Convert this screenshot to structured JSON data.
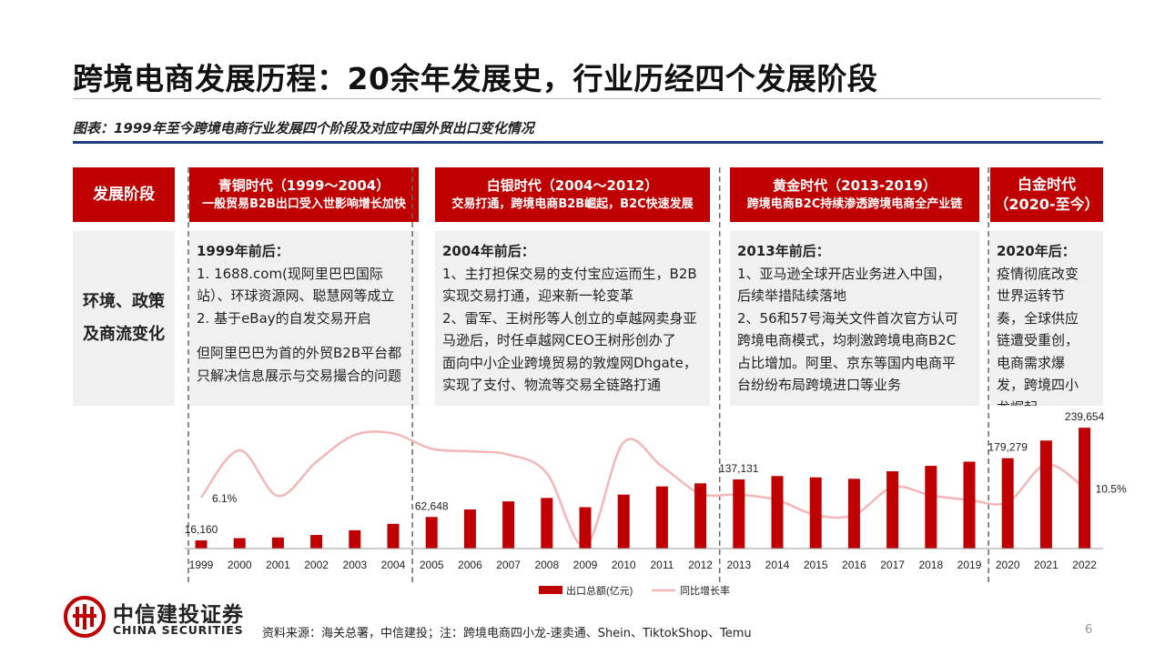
{
  "title": "跨境电商发展历程：20余年发展史，行业历经四个发展阶段",
  "subtitle": "图表：1999年至今跨境电商行业发展四个阶段及对应中国外贸出口变化情况",
  "row_labels": {
    "stage": "发展阶段",
    "env_line1": "环境、政策",
    "env_line2": "及商流变化"
  },
  "stages": [
    {
      "name": "青铜时代（1999～2004）",
      "desc": "一般贸易B2B出口受入世影响增长加快"
    },
    {
      "name": "白银时代（2004～2012）",
      "desc": "交易打通，跨境电商B2B崛起，B2C快速发展"
    },
    {
      "name": "黄金时代（2013-2019）",
      "desc": "跨境电商B2C持续渗透跨境电商全产业链"
    },
    {
      "name": "白金时代",
      "desc": "（2020-至今）"
    }
  ],
  "details": [
    {
      "head": "1999年前后：",
      "lines": [
        "1. 1688.com(现阿里巴巴国际",
        "站）、环球资源网、聪慧网等成立",
        "2. 基于eBay的自发交易开启"
      ],
      "lines2": [
        "但阿里巴巴为首的外贸B2B平台都",
        "只解决信息展示与交易撮合的问题"
      ]
    },
    {
      "head": "2004年前后：",
      "lines": [
        "1、主打担保交易的支付宝应运而生，B2B",
        "实现交易打通，迎来新一轮变革",
        "2、雷军、王树彤等人创立的卓越网卖身亚",
        "马逊后，时任卓越网CEO王树彤创办了",
        "面向中小企业跨境贸易的敦煌网Dhgate，",
        "实现了支付、物流等交易全链路打通"
      ],
      "lines2": []
    },
    {
      "head": "2013年前后：",
      "lines": [
        "1、亚马逊全球开店业务进入中国，",
        "后续举措陆续落地",
        "2、56和57号海关文件首次官方认可",
        "跨境电商模式，均刺激跨境电商B2C",
        "占比增加。阿里、京东等国内电商平",
        "台纷纷布局跨境进口等业务"
      ],
      "lines2": []
    },
    {
      "head": "2020年后：",
      "lines": [
        "疫情彻底改变",
        "世界运转节",
        "奏，全球供应",
        "链遭受重创，",
        "电商需求爆",
        "发，跨境四小",
        "龙崛起"
      ],
      "lines2": []
    }
  ],
  "chart_data": {
    "type": "bar",
    "categories": [
      "1999",
      "2000",
      "2001",
      "2002",
      "2003",
      "2004",
      "2005",
      "2006",
      "2007",
      "2008",
      "2009",
      "2010",
      "2011",
      "2012",
      "2013",
      "2014",
      "2015",
      "2016",
      "2017",
      "2018",
      "2019",
      "2020",
      "2021",
      "2022"
    ],
    "series": [
      {
        "name": "出口总额(亿元)",
        "type": "bar",
        "color": "#c00000",
        "values": [
          16160,
          20634,
          22024,
          26948,
          36288,
          49103,
          62648,
          77597,
          93627,
          100395,
          82030,
          107023,
          123241,
          129359,
          137131,
          143884,
          141167,
          138419,
          153309,
          164127,
          172374,
          179279,
          214255,
          239654
        ]
      },
      {
        "name": "同比增长率",
        "type": "line",
        "color": "#f4b6b6",
        "values": [
          6.1,
          27.7,
          6.8,
          22.4,
          34.7,
          35.4,
          28.4,
          27.2,
          25.7,
          17.2,
          -16.0,
          31.3,
          20.3,
          7.9,
          7.4,
          4.9,
          -1.9,
          -1.9,
          10.8,
          7.1,
          5.0,
          4.0,
          21.2,
          10.5
        ]
      }
    ],
    "labeled_values": {
      "1999": "16,160",
      "2005": "62,648",
      "2013": "137,131",
      "2020": "179,279",
      "2022": "239,654"
    },
    "line_labels": {
      "first": "6.1%",
      "last": "10.5%"
    },
    "ylim": [
      0,
      240000
    ],
    "growth_ylim": [
      -16,
      36
    ],
    "legend_position": "bottom-center"
  },
  "logo": {
    "cn": "中信建投证券",
    "en": "CHINA SECURITIES"
  },
  "source": "资料来源：海关总署，中信建投；注：跨境电商四小龙-速卖通、Shein、TiktokShop、Temu",
  "page_number": "6"
}
